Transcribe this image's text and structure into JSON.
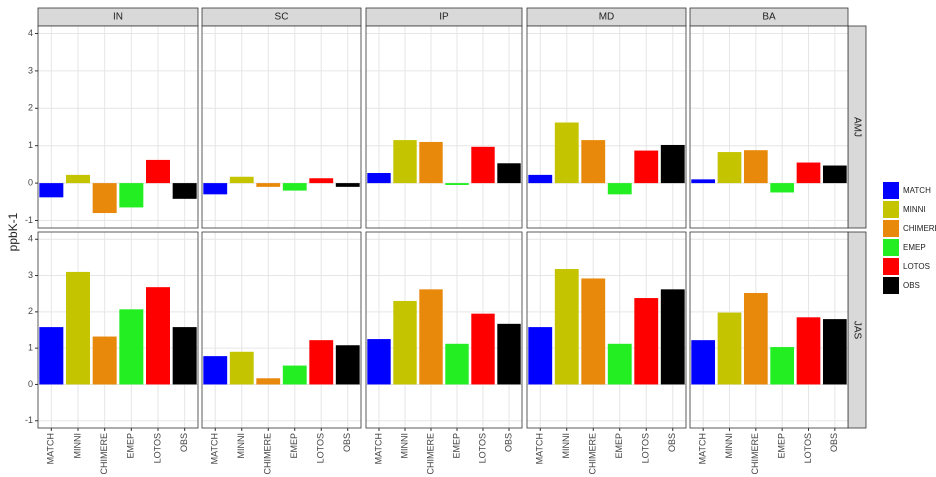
{
  "chart_data": {
    "type": "bar",
    "y_label": "ppbK-1",
    "columns": [
      "IN",
      "SC",
      "IP",
      "MD",
      "BA"
    ],
    "rows": [
      "AMJ",
      "JAS"
    ],
    "categories": [
      "MATCH",
      "MINNI",
      "CHIMERE",
      "EMEP",
      "LOTOS",
      "OBS"
    ],
    "ylim": [
      -1.2,
      4.2
    ],
    "yticks": [
      -1,
      0,
      1,
      2,
      3,
      4
    ],
    "grid": true,
    "legend": "right",
    "series": [
      {
        "name": "MATCH",
        "color": "#0000ff",
        "values": [
          [
            -0.38,
            -0.3,
            0.27,
            0.22,
            0.1
          ],
          [
            1.58,
            0.78,
            1.25,
            1.58,
            1.22
          ]
        ]
      },
      {
        "name": "MINNI",
        "color": "#c4c400",
        "values": [
          [
            0.22,
            0.17,
            1.15,
            1.62,
            0.83
          ],
          [
            3.1,
            0.9,
            2.3,
            3.18,
            1.98
          ]
        ]
      },
      {
        "name": "CHIMERE",
        "color": "#e8890c",
        "values": [
          [
            -0.8,
            -0.1,
            1.1,
            1.15,
            0.88
          ],
          [
            1.32,
            0.17,
            2.62,
            2.92,
            2.52
          ]
        ]
      },
      {
        "name": "EMEP",
        "color": "#22ee22",
        "values": [
          [
            -0.65,
            -0.2,
            -0.05,
            -0.3,
            -0.25
          ],
          [
            2.07,
            0.52,
            1.12,
            1.12,
            1.03
          ]
        ]
      },
      {
        "name": "LOTOS",
        "color": "#ff0000",
        "values": [
          [
            0.62,
            0.13,
            0.97,
            0.87,
            0.55
          ],
          [
            2.68,
            1.22,
            1.95,
            2.38,
            1.85
          ]
        ]
      },
      {
        "name": "OBS",
        "color": "#000000",
        "values": [
          [
            -0.42,
            -0.1,
            0.53,
            1.02,
            0.47
          ],
          [
            1.58,
            1.08,
            1.67,
            2.62,
            1.8
          ]
        ]
      }
    ]
  }
}
